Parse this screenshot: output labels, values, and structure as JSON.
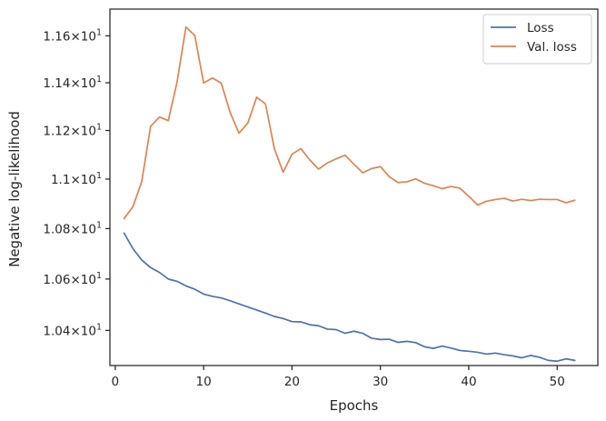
{
  "chart_data": {
    "type": "line",
    "title": "",
    "xlabel": "Epochs",
    "ylabel": "Negative log-likelihood",
    "y_scale": "log",
    "xlim": [
      -0.6,
      54.6
    ],
    "ylim": [
      10.2655,
      11.7155
    ],
    "x_ticks": [
      0,
      10,
      20,
      30,
      40,
      50
    ],
    "y_ticks": [
      10.4,
      10.6,
      10.8,
      11.0,
      11.2,
      11.4,
      11.6
    ],
    "y_tick_labels": [
      {
        "mantissa": "1.04",
        "base": "10",
        "exp": "1"
      },
      {
        "mantissa": "1.06",
        "base": "10",
        "exp": "1"
      },
      {
        "mantissa": "1.08",
        "base": "10",
        "exp": "1"
      },
      {
        "mantissa": "1.1",
        "base": "10",
        "exp": "1"
      },
      {
        "mantissa": "1.12",
        "base": "10",
        "exp": "1"
      },
      {
        "mantissa": "1.14",
        "base": "10",
        "exp": "1"
      },
      {
        "mantissa": "1.16",
        "base": "10",
        "exp": "1"
      }
    ],
    "grid": false,
    "legend_position": "top-right",
    "x": [
      1,
      2,
      3,
      4,
      5,
      6,
      7,
      8,
      9,
      10,
      11,
      12,
      13,
      14,
      15,
      16,
      17,
      18,
      19,
      20,
      21,
      22,
      23,
      24,
      25,
      26,
      27,
      28,
      29,
      30,
      31,
      32,
      33,
      34,
      35,
      36,
      37,
      38,
      39,
      40,
      41,
      42,
      43,
      44,
      45,
      46,
      47,
      48,
      49,
      50,
      51,
      52
    ],
    "series": [
      {
        "name": "Loss",
        "color": "#4c72b0",
        "values": [
          10.782,
          10.72,
          10.675,
          10.645,
          10.626,
          10.6,
          10.591,
          10.573,
          10.56,
          10.541,
          10.532,
          10.526,
          10.515,
          10.503,
          10.491,
          10.479,
          10.467,
          10.454,
          10.446,
          10.434,
          10.433,
          10.422,
          10.418,
          10.405,
          10.403,
          10.389,
          10.397,
          10.389,
          10.37,
          10.365,
          10.366,
          10.354,
          10.358,
          10.353,
          10.337,
          10.331,
          10.34,
          10.332,
          10.323,
          10.32,
          10.316,
          10.309,
          10.313,
          10.307,
          10.302,
          10.295,
          10.304,
          10.297,
          10.285,
          10.282,
          10.291,
          10.285
        ]
      },
      {
        "name": "Val. loss",
        "color": "#dd8452",
        "values": [
          10.84,
          10.888,
          10.99,
          11.217,
          11.256,
          11.241,
          11.404,
          11.638,
          11.601,
          11.399,
          11.42,
          11.398,
          11.275,
          11.189,
          11.231,
          11.339,
          11.311,
          11.125,
          11.028,
          11.102,
          11.125,
          11.079,
          11.041,
          11.066,
          11.083,
          11.098,
          11.061,
          11.026,
          11.043,
          11.051,
          11.01,
          10.986,
          10.989,
          11.001,
          10.983,
          10.973,
          10.961,
          10.97,
          10.963,
          10.93,
          10.895,
          10.91,
          10.917,
          10.922,
          10.911,
          10.918,
          10.913,
          10.918,
          10.917,
          10.917,
          10.904,
          10.914
        ]
      }
    ]
  }
}
